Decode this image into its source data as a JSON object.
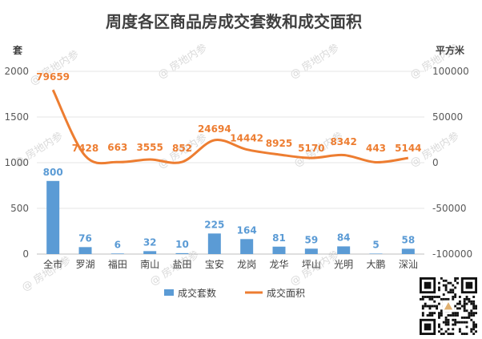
{
  "chart_data": {
    "type": "bar",
    "title": "周度各区商品房成交套数和成交面积",
    "left_axis_unit": "套",
    "right_axis_unit": "平方米",
    "categories": [
      "全市",
      "罗湖",
      "福田",
      "南山",
      "盐田",
      "宝安",
      "龙岗",
      "龙华",
      "坪山",
      "光明",
      "大鹏",
      "深汕"
    ],
    "series": [
      {
        "name": "成交套数",
        "type": "bar",
        "axis": "left",
        "color": "#5b9bd5",
        "values": [
          800,
          76,
          6,
          32,
          10,
          225,
          164,
          81,
          59,
          84,
          5,
          58
        ]
      },
      {
        "name": "成交面积",
        "type": "line",
        "axis": "right",
        "color": "#ed7d31",
        "values": [
          79659,
          7428,
          663,
          3555,
          852,
          24694,
          14442,
          8925,
          5170,
          8342,
          443,
          5144
        ]
      }
    ],
    "left_axis": {
      "range": [
        0,
        2000
      ],
      "ticks": [
        "0",
        "500",
        "1000",
        "1500",
        "2000"
      ]
    },
    "right_axis": {
      "range": [
        -100000,
        100000
      ],
      "ticks": [
        "-100000",
        "-50000",
        "0",
        "50000",
        "100000"
      ]
    },
    "grid": true,
    "legend_position": "bottom",
    "watermark": "房地内参",
    "qr_code": true
  }
}
